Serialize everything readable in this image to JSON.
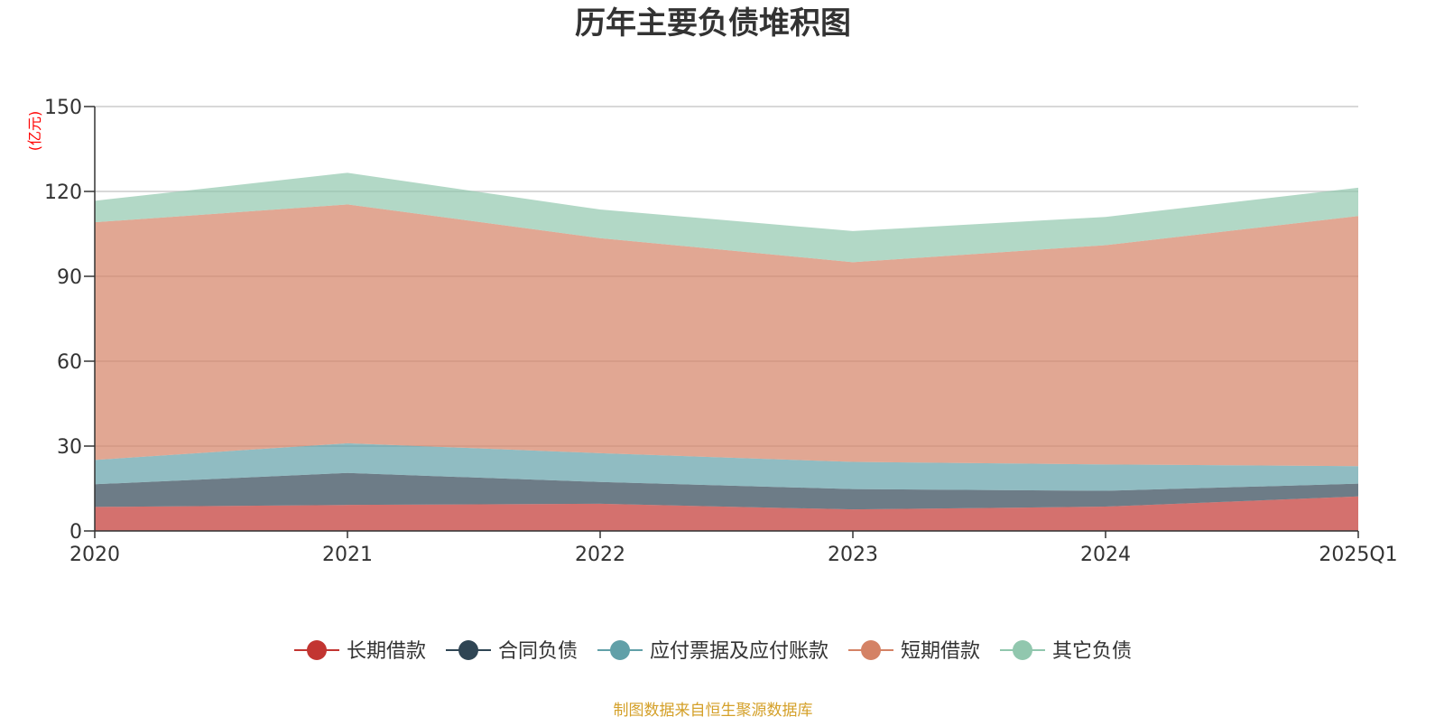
{
  "chart_data": {
    "type": "area",
    "stacked": true,
    "title": "历年主要负债堆积图",
    "ylabel": "(亿元)",
    "xlabel": "",
    "categories": [
      "2020",
      "2021",
      "2022",
      "2023",
      "2024",
      "2025Q1"
    ],
    "ylim": [
      0,
      150
    ],
    "yticks": [
      0,
      30,
      60,
      90,
      120,
      150
    ],
    "grid": true,
    "legend_position": "bottom-center",
    "series": [
      {
        "name": "长期借款",
        "color": "#c23531",
        "values": [
          8.5,
          9.2,
          9.6,
          7.6,
          8.6,
          12.2
        ]
      },
      {
        "name": "合同负债",
        "color": "#2f4554",
        "values": [
          8.0,
          11.3,
          7.7,
          7.2,
          5.6,
          4.5
        ]
      },
      {
        "name": "应付票据及应付账款",
        "color": "#61a0a8",
        "values": [
          8.6,
          10.5,
          10.2,
          9.6,
          9.3,
          6.2
        ]
      },
      {
        "name": "短期借款",
        "color": "#d48265",
        "values": [
          84.0,
          84.4,
          76.0,
          70.6,
          77.5,
          88.4
        ]
      },
      {
        "name": "其它负债",
        "color": "#91c7ae",
        "values": [
          7.6,
          11.2,
          10.1,
          11.0,
          10.0,
          10.0
        ]
      }
    ],
    "source_note": "制图数据来自恒生聚源数据库"
  }
}
